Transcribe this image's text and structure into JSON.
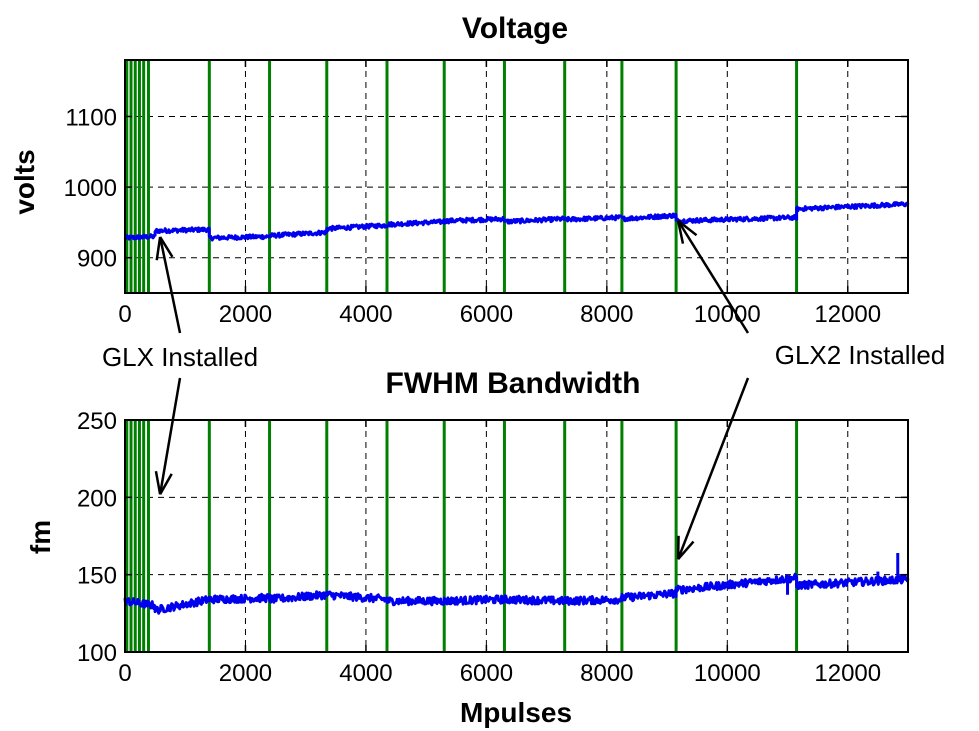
{
  "chart_data": [
    {
      "type": "line",
      "title": "Voltage",
      "xlabel": "",
      "ylabel": "volts",
      "xlim": [
        0,
        13000
      ],
      "ylim": [
        850,
        1180
      ],
      "xticks": [
        0,
        2000,
        4000,
        6000,
        8000,
        10000,
        12000
      ],
      "yticks": [
        900,
        1000,
        1100
      ],
      "xtick_labels": [
        "0",
        "2000",
        "4000",
        "6000",
        "8000",
        "10000",
        "12000"
      ],
      "ytick_labels": [
        "900",
        "1000",
        "1100"
      ],
      "grid": true,
      "series_color": "#0000ee",
      "marker_color": "#008000",
      "event_lines_x": [
        30,
        100,
        170,
        240,
        310,
        390,
        1400,
        2400,
        3350,
        4350,
        5300,
        6300,
        7300,
        8250,
        9150,
        11150
      ],
      "series": [
        {
          "x": [
            0,
            500,
            1400,
            2400,
            3350,
            4350,
            5300,
            6300,
            7300,
            8250,
            9150,
            11150,
            13000
          ],
          "segments": [
            {
              "x0": 0,
              "x1": 500,
              "y0": 928,
              "y1": 930
            },
            {
              "x0": 500,
              "x1": 1400,
              "y0": 938,
              "y1": 940
            },
            {
              "x0": 1400,
              "x1": 2400,
              "y0": 928,
              "y1": 930
            },
            {
              "x0": 2400,
              "x1": 3350,
              "y0": 931,
              "y1": 936
            },
            {
              "x0": 3350,
              "x1": 4350,
              "y0": 941,
              "y1": 946
            },
            {
              "x0": 4350,
              "x1": 5300,
              "y0": 947,
              "y1": 951
            },
            {
              "x0": 5300,
              "x1": 6300,
              "y0": 952,
              "y1": 955
            },
            {
              "x0": 6300,
              "x1": 7300,
              "y0": 951,
              "y1": 955
            },
            {
              "x0": 7300,
              "x1": 8250,
              "y0": 954,
              "y1": 957
            },
            {
              "x0": 8250,
              "x1": 9150,
              "y0": 955,
              "y1": 960
            },
            {
              "x0": 9150,
              "x1": 11150,
              "y0": 952,
              "y1": 957
            },
            {
              "x0": 11150,
              "x1": 13000,
              "y0": 969,
              "y1": 976
            }
          ]
        }
      ]
    },
    {
      "type": "line",
      "title": "FWHM Bandwidth",
      "xlabel": "Mpulses",
      "ylabel": "fm",
      "xlim": [
        0,
        13000
      ],
      "ylim": [
        100,
        250
      ],
      "xticks": [
        0,
        2000,
        4000,
        6000,
        8000,
        10000,
        12000
      ],
      "yticks": [
        100,
        150,
        200,
        250
      ],
      "xtick_labels": [
        "0",
        "2000",
        "4000",
        "6000",
        "8000",
        "10000",
        "12000"
      ],
      "ytick_labels": [
        "100",
        "150",
        "200",
        "250"
      ],
      "grid": true,
      "series_color": "#0000ee",
      "marker_color": "#008000",
      "event_lines_x": [
        30,
        100,
        170,
        240,
        310,
        390,
        1400,
        2400,
        3350,
        4350,
        5300,
        6300,
        7300,
        8250,
        9150,
        11150
      ],
      "series": [
        {
          "segments": [
            {
              "x0": 0,
              "x1": 500,
              "y0": 133,
              "y1": 130
            },
            {
              "x0": 500,
              "x1": 1400,
              "y0": 127,
              "y1": 134
            },
            {
              "x0": 1400,
              "x1": 2400,
              "y0": 134,
              "y1": 135
            },
            {
              "x0": 2400,
              "x1": 3350,
              "y0": 134,
              "y1": 137
            },
            {
              "x0": 3350,
              "x1": 4350,
              "y0": 137,
              "y1": 134
            },
            {
              "x0": 4350,
              "x1": 5300,
              "y0": 133,
              "y1": 133
            },
            {
              "x0": 5300,
              "x1": 6300,
              "y0": 133,
              "y1": 134
            },
            {
              "x0": 6300,
              "x1": 7300,
              "y0": 134,
              "y1": 133
            },
            {
              "x0": 7300,
              "x1": 8250,
              "y0": 133,
              "y1": 134
            },
            {
              "x0": 8250,
              "x1": 9150,
              "y0": 135,
              "y1": 138
            },
            {
              "x0": 9150,
              "x1": 11150,
              "y0": 140,
              "y1": 148
            },
            {
              "x0": 11150,
              "x1": 13000,
              "y0": 143,
              "y1": 147
            }
          ],
          "spikes": [
            {
              "x": 11000,
              "y": 137
            },
            {
              "x": 12830,
              "y": 164
            },
            {
              "x": 12500,
              "y": 152
            }
          ]
        }
      ]
    }
  ],
  "annotations": [
    {
      "text": "GLX Installed",
      "points_to": [
        {
          "chart": 0,
          "x": 500,
          "y": 935
        },
        {
          "chart": 1,
          "x": 500,
          "y": 202
        }
      ]
    },
    {
      "text": "GLX2 Installed",
      "points_to": [
        {
          "chart": 0,
          "x": 9150,
          "y": 958
        },
        {
          "chart": 1,
          "x": 9150,
          "y": 160
        }
      ]
    }
  ]
}
